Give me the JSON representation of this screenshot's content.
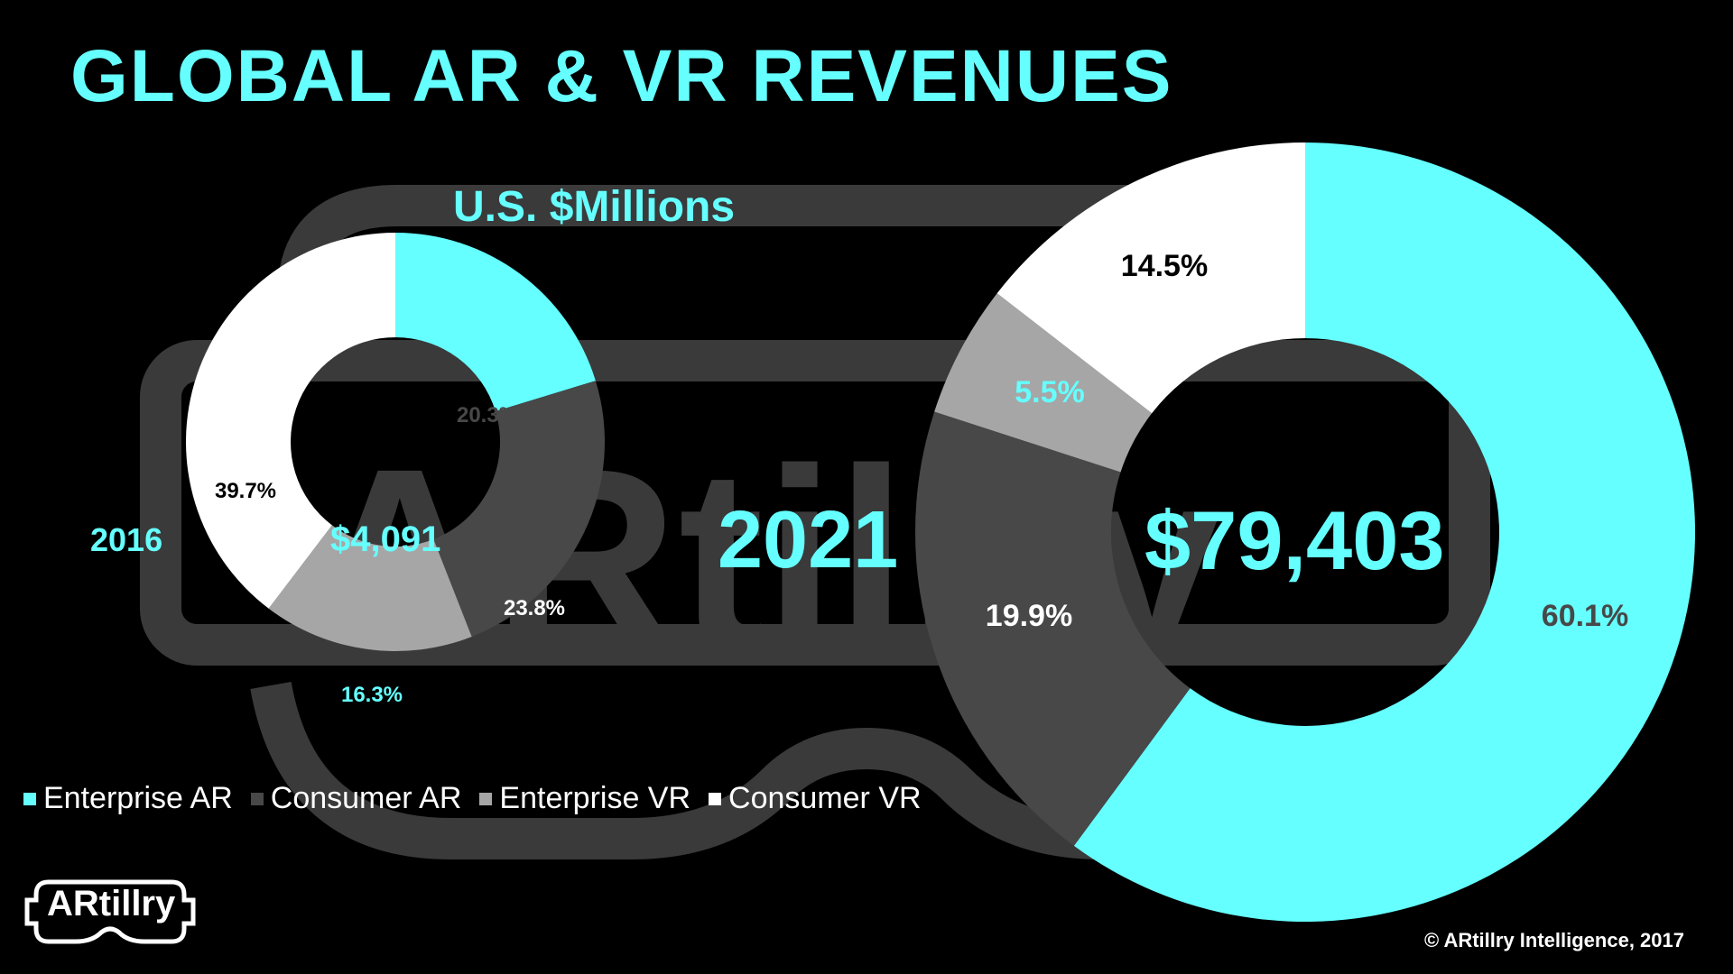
{
  "title": "GLOBAL AR & VR REVENUES",
  "subtitle": "U.S. $Millions",
  "colors": {
    "enterprise_ar": "#66ffff",
    "consumer_ar": "#484848",
    "enterprise_vr": "#a6a6a6",
    "consumer_vr": "#ffffff",
    "background": "#000000",
    "watermark": "#3a3a3a"
  },
  "watermark": {
    "text": "ARtillry"
  },
  "legend": [
    {
      "label": "Enterprise AR",
      "color": "#66ffff"
    },
    {
      "label": "Consumer AR",
      "color": "#484848"
    },
    {
      "label": "Enterprise VR",
      "color": "#a6a6a6"
    },
    {
      "label": "Consumer VR",
      "color": "#ffffff"
    }
  ],
  "logo": {
    "text": "ARtillry"
  },
  "copyright": "© ARtillry Intelligence, 2017",
  "chart_data": [
    {
      "type": "pie",
      "year": "2016",
      "total": "$4,091",
      "categories": [
        "Enterprise AR",
        "Consumer AR",
        "Enterprise VR",
        "Consumer VR"
      ],
      "values": [
        20.3,
        23.8,
        16.3,
        39.7
      ],
      "labels": [
        "20.3%",
        "23.8%",
        "16.3%",
        "39.7%"
      ]
    },
    {
      "type": "pie",
      "year": "2021",
      "total": "$79,403",
      "categories": [
        "Enterprise AR",
        "Consumer AR",
        "Enterprise VR",
        "Consumer VR"
      ],
      "values": [
        60.1,
        19.9,
        5.5,
        14.5
      ],
      "labels": [
        "60.1%",
        "19.9%",
        "5.5%",
        "14.5%"
      ]
    }
  ]
}
